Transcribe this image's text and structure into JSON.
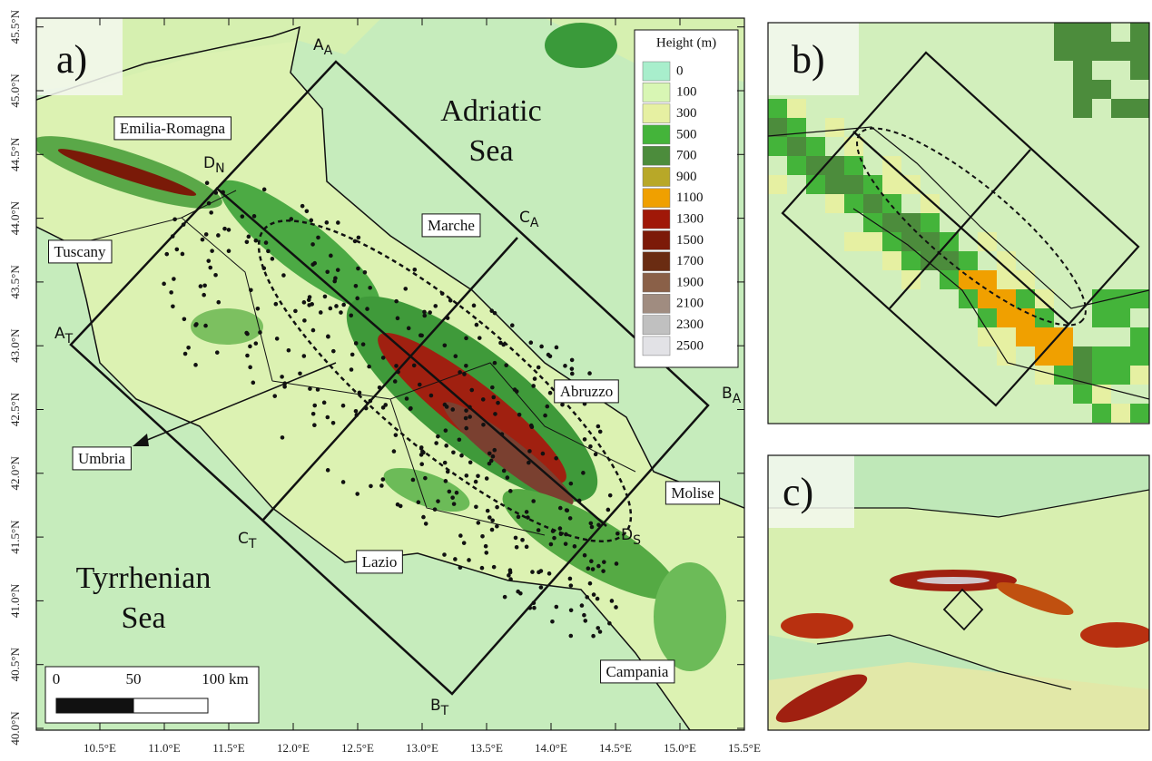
{
  "panels": [
    "a)",
    "b)",
    "c)"
  ],
  "seas": [
    [
      "Adriatic",
      "Sea"
    ],
    [
      "Tyrrhenian",
      "Sea"
    ]
  ],
  "regions": [
    "Emilia-Romagna",
    "Tuscany",
    "Marche",
    "Umbria",
    "Abruzzo",
    "Molise",
    "Lazio",
    "Campania"
  ],
  "points": [
    {
      "main": "A",
      "sub": "A"
    },
    {
      "main": "C",
      "sub": "A"
    },
    {
      "main": "B",
      "sub": "A"
    },
    {
      "main": "B",
      "sub": "T"
    },
    {
      "main": "C",
      "sub": "T"
    },
    {
      "main": "A",
      "sub": "T"
    },
    {
      "main": "D",
      "sub": "N"
    },
    {
      "main": "D",
      "sub": "S"
    }
  ],
  "legend": {
    "title": "Height (m)",
    "levels": [
      0,
      100,
      300,
      500,
      700,
      900,
      1100,
      1300,
      1500,
      1700,
      1900,
      2100,
      2300,
      2500
    ],
    "colors": [
      "#a8eecc",
      "#d8f6b4",
      "#e6f0a2",
      "#44b43a",
      "#4c8c3c",
      "#b8a828",
      "#f0a000",
      "#a01808",
      "#7c1a08",
      "#6a2c12",
      "#8a6048",
      "#a08c80",
      "#c0c0c0",
      "#e2e2e6"
    ]
  },
  "scale_bar": [
    "0",
    "50",
    "100 km"
  ],
  "lat_ticks": [
    "40.0°N",
    "40.5°N",
    "41.0°N",
    "41.5°N",
    "42.0°N",
    "42.5°N",
    "43.0°N",
    "43.5°N",
    "44.0°N",
    "44.5°N",
    "45.0°N",
    "45.5°N"
  ],
  "lon_ticks": [
    "10.5°E",
    "11.0°E",
    "11.5°E",
    "12.0°E",
    "12.5°E",
    "13.0°E",
    "13.5°E",
    "14.0°E",
    "14.5°E",
    "15.0°E",
    "15.5°E"
  ]
}
